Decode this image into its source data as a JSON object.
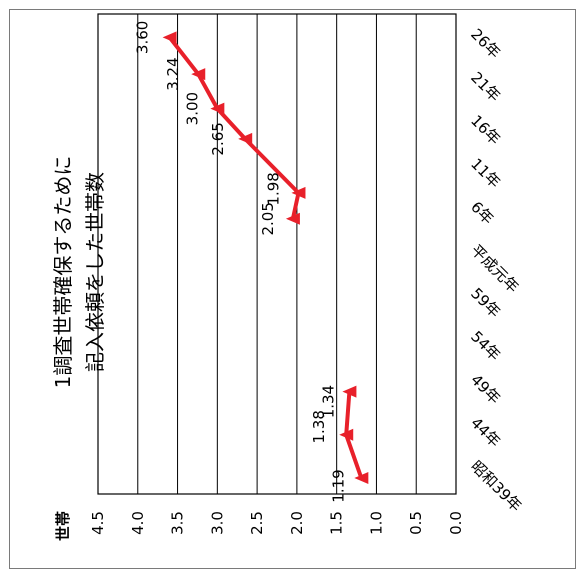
{
  "chart_data": {
    "type": "line",
    "orientation": "rotated-90-clockwise",
    "title": "1調査世帯確保するために\n記入依頼をした世帯数",
    "ylabel": "世帯",
    "ylim": [
      0,
      4.5
    ],
    "yticks": [
      "0.0",
      "0.5",
      "1.0",
      "1.5",
      "2.0",
      "2.5",
      "3.0",
      "3.5",
      "4.0",
      "4.5"
    ],
    "categories": [
      "昭和39年",
      "44年",
      "49年",
      "54年",
      "59年",
      "平成元年",
      "6年",
      "11年",
      "16年",
      "21年",
      "26年"
    ],
    "series": [
      {
        "color": "#e8202a",
        "segments": [
          {
            "x": [
              0,
              1,
              2
            ],
            "values": [
              1.19,
              1.38,
              1.34
            ],
            "labels": [
              "1.19",
              "1.38",
              "1.34"
            ]
          },
          {
            "x": [
              6,
              6.6,
              7.85,
              8.55,
              9.35,
              10.2
            ],
            "values": [
              2.05,
              1.98,
              2.65,
              3.0,
              3.24,
              3.6
            ],
            "labels": [
              "2.05",
              "1.98",
              "2.65",
              "3.00",
              "3.24",
              "3.60"
            ]
          }
        ]
      }
    ],
    "grid": true
  }
}
